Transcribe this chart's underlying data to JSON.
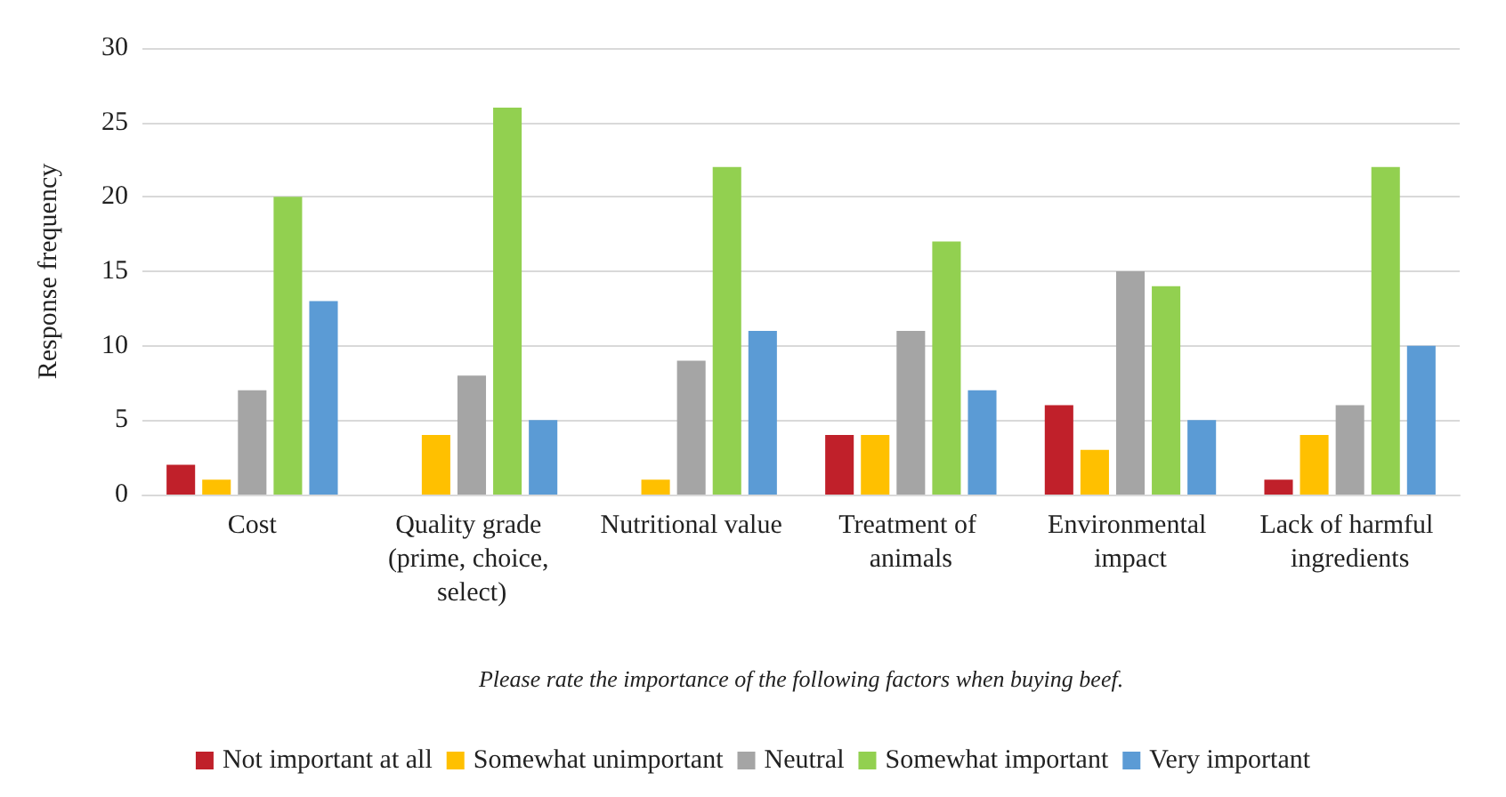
{
  "chart_data": {
    "type": "bar",
    "xlabel": "Please rate the importance of the following factors when buying beef.",
    "ylabel": "Response frequency",
    "categories": [
      "Cost",
      "Quality grade (prime, choice, select)",
      "Nutritional value",
      "Treatment of animals",
      "Environmental impact",
      "Lack of harmful ingredients"
    ],
    "series": [
      {
        "name": "Not important at all",
        "color": "#c0202a",
        "values": [
          2,
          0,
          0,
          4,
          6,
          1
        ]
      },
      {
        "name": "Somewhat unimportant",
        "color": "#ffc000",
        "values": [
          1,
          4,
          1,
          4,
          3,
          4
        ]
      },
      {
        "name": "Neutral",
        "color": "#a5a5a5",
        "values": [
          7,
          8,
          9,
          11,
          15,
          6
        ]
      },
      {
        "name": "Somewhat important",
        "color": "#92d050",
        "values": [
          20,
          26,
          22,
          17,
          14,
          22
        ]
      },
      {
        "name": "Very important",
        "color": "#5b9bd5",
        "values": [
          13,
          5,
          11,
          7,
          5,
          10
        ]
      }
    ],
    "ylim": [
      0,
      30
    ],
    "yticks": [
      0,
      5,
      10,
      15,
      20,
      25,
      30
    ],
    "grid": "y",
    "legend": "bottom"
  }
}
